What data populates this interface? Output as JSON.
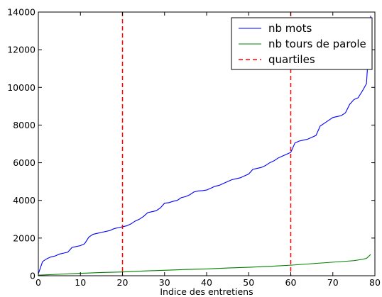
{
  "chart_data": {
    "type": "line",
    "title": "",
    "xlabel": "Indice des entretiens",
    "ylabel": "",
    "xlim": [
      0,
      80
    ],
    "ylim": [
      0,
      14000
    ],
    "xticks": [
      0,
      10,
      20,
      30,
      40,
      50,
      60,
      70,
      80
    ],
    "yticks": [
      0,
      2000,
      4000,
      6000,
      8000,
      10000,
      12000,
      14000
    ],
    "grid": false,
    "legend_position": "top-right",
    "series": [
      {
        "name": "nb mots",
        "color": "#0000ff",
        "x": [
          0,
          1,
          2,
          3,
          4,
          5,
          6,
          7,
          8,
          9,
          10,
          11,
          12,
          13,
          14,
          15,
          16,
          17,
          18,
          19,
          20,
          21,
          22,
          23,
          24,
          25,
          26,
          27,
          28,
          29,
          30,
          31,
          32,
          33,
          34,
          35,
          36,
          37,
          38,
          39,
          40,
          41,
          42,
          43,
          44,
          45,
          46,
          47,
          48,
          49,
          50,
          51,
          52,
          53,
          54,
          55,
          56,
          57,
          58,
          59,
          60,
          61,
          62,
          63,
          64,
          65,
          66,
          67,
          68,
          69,
          70,
          71,
          72,
          73,
          74,
          75,
          76,
          77,
          78,
          79
        ],
        "values": [
          100,
          750,
          900,
          1000,
          1050,
          1150,
          1200,
          1250,
          1500,
          1550,
          1600,
          1700,
          2050,
          2200,
          2250,
          2300,
          2350,
          2400,
          2500,
          2550,
          2600,
          2650,
          2750,
          2900,
          3000,
          3150,
          3350,
          3400,
          3450,
          3600,
          3850,
          3880,
          3950,
          4000,
          4150,
          4200,
          4300,
          4450,
          4500,
          4520,
          4550,
          4650,
          4750,
          4800,
          4900,
          5000,
          5100,
          5150,
          5200,
          5300,
          5400,
          5650,
          5700,
          5750,
          5850,
          6000,
          6100,
          6250,
          6350,
          6450,
          6550,
          7050,
          7150,
          7200,
          7250,
          7350,
          7450,
          7950,
          8100,
          8250,
          8400,
          8450,
          8500,
          8650,
          9100,
          9350,
          9450,
          9800,
          10200,
          13800
        ]
      },
      {
        "name": "nb tours de parole",
        "color": "#008000",
        "x": [
          0,
          5,
          10,
          15,
          20,
          25,
          30,
          35,
          40,
          45,
          50,
          55,
          60,
          65,
          70,
          75,
          77,
          78,
          79
        ],
        "values": [
          30,
          80,
          130,
          170,
          200,
          250,
          290,
          330,
          360,
          410,
          450,
          500,
          560,
          640,
          720,
          800,
          870,
          920,
          1130
        ]
      },
      {
        "name": "quartiles",
        "color": "#ff0000",
        "style": "dashed",
        "x": [
          20,
          60
        ]
      }
    ]
  }
}
